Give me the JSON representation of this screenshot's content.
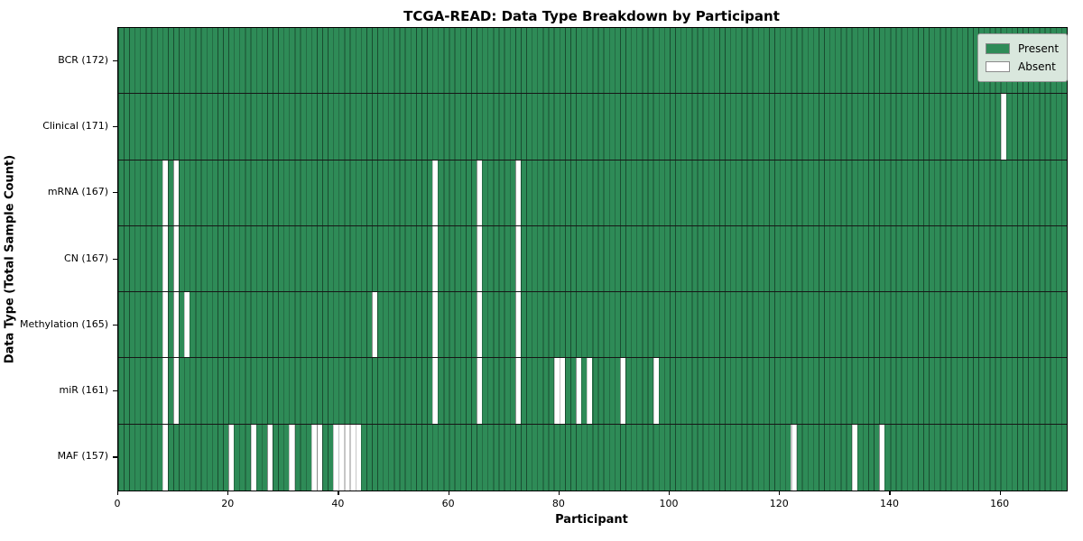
{
  "figure": {
    "title": "TCGA-READ: Data Type Breakdown by Participant",
    "x_axis_label": "Participant",
    "y_axis_label": "Data Type (Total Sample Count)"
  },
  "legend": {
    "entries": [
      {
        "label": "Present",
        "color": "#2e8b57"
      },
      {
        "label": "Absent",
        "color": "#ffffff"
      }
    ]
  },
  "chart_data": {
    "type": "heatmap",
    "title": "TCGA-READ: Data Type Breakdown by Participant",
    "xlabel": "Participant",
    "ylabel": "Data Type (Total Sample Count)",
    "legend_position": "upper right",
    "present_color": "#2e8b57",
    "absent_color": "#ffffff",
    "n_participants": 172,
    "x_ticks": [
      0,
      20,
      40,
      60,
      80,
      100,
      120,
      140,
      160
    ],
    "rows": [
      {
        "data_type": "BCR",
        "label": "BCR (172)",
        "total": 172,
        "absent_participants": []
      },
      {
        "data_type": "Clinical",
        "label": "Clinical (171)",
        "total": 171,
        "absent_participants": [
          160
        ]
      },
      {
        "data_type": "mRNA",
        "label": "mRNA (167)",
        "total": 167,
        "absent_participants": [
          8,
          10,
          57,
          65,
          72
        ]
      },
      {
        "data_type": "CN",
        "label": "CN (167)",
        "total": 167,
        "absent_participants": [
          8,
          10,
          57,
          65,
          72
        ]
      },
      {
        "data_type": "Methylation",
        "label": "Methylation (165)",
        "total": 165,
        "absent_participants": [
          8,
          10,
          12,
          46,
          57,
          65,
          72
        ]
      },
      {
        "data_type": "miR",
        "label": "miR (161)",
        "total": 161,
        "absent_participants": [
          8,
          10,
          57,
          65,
          72,
          79,
          80,
          83,
          85,
          91,
          97
        ]
      },
      {
        "data_type": "MAF",
        "label": "MAF (157)",
        "total": 157,
        "absent_participants": [
          8,
          20,
          24,
          27,
          31,
          35,
          36,
          39,
          40,
          41,
          42,
          43,
          122,
          133,
          138
        ]
      }
    ]
  }
}
